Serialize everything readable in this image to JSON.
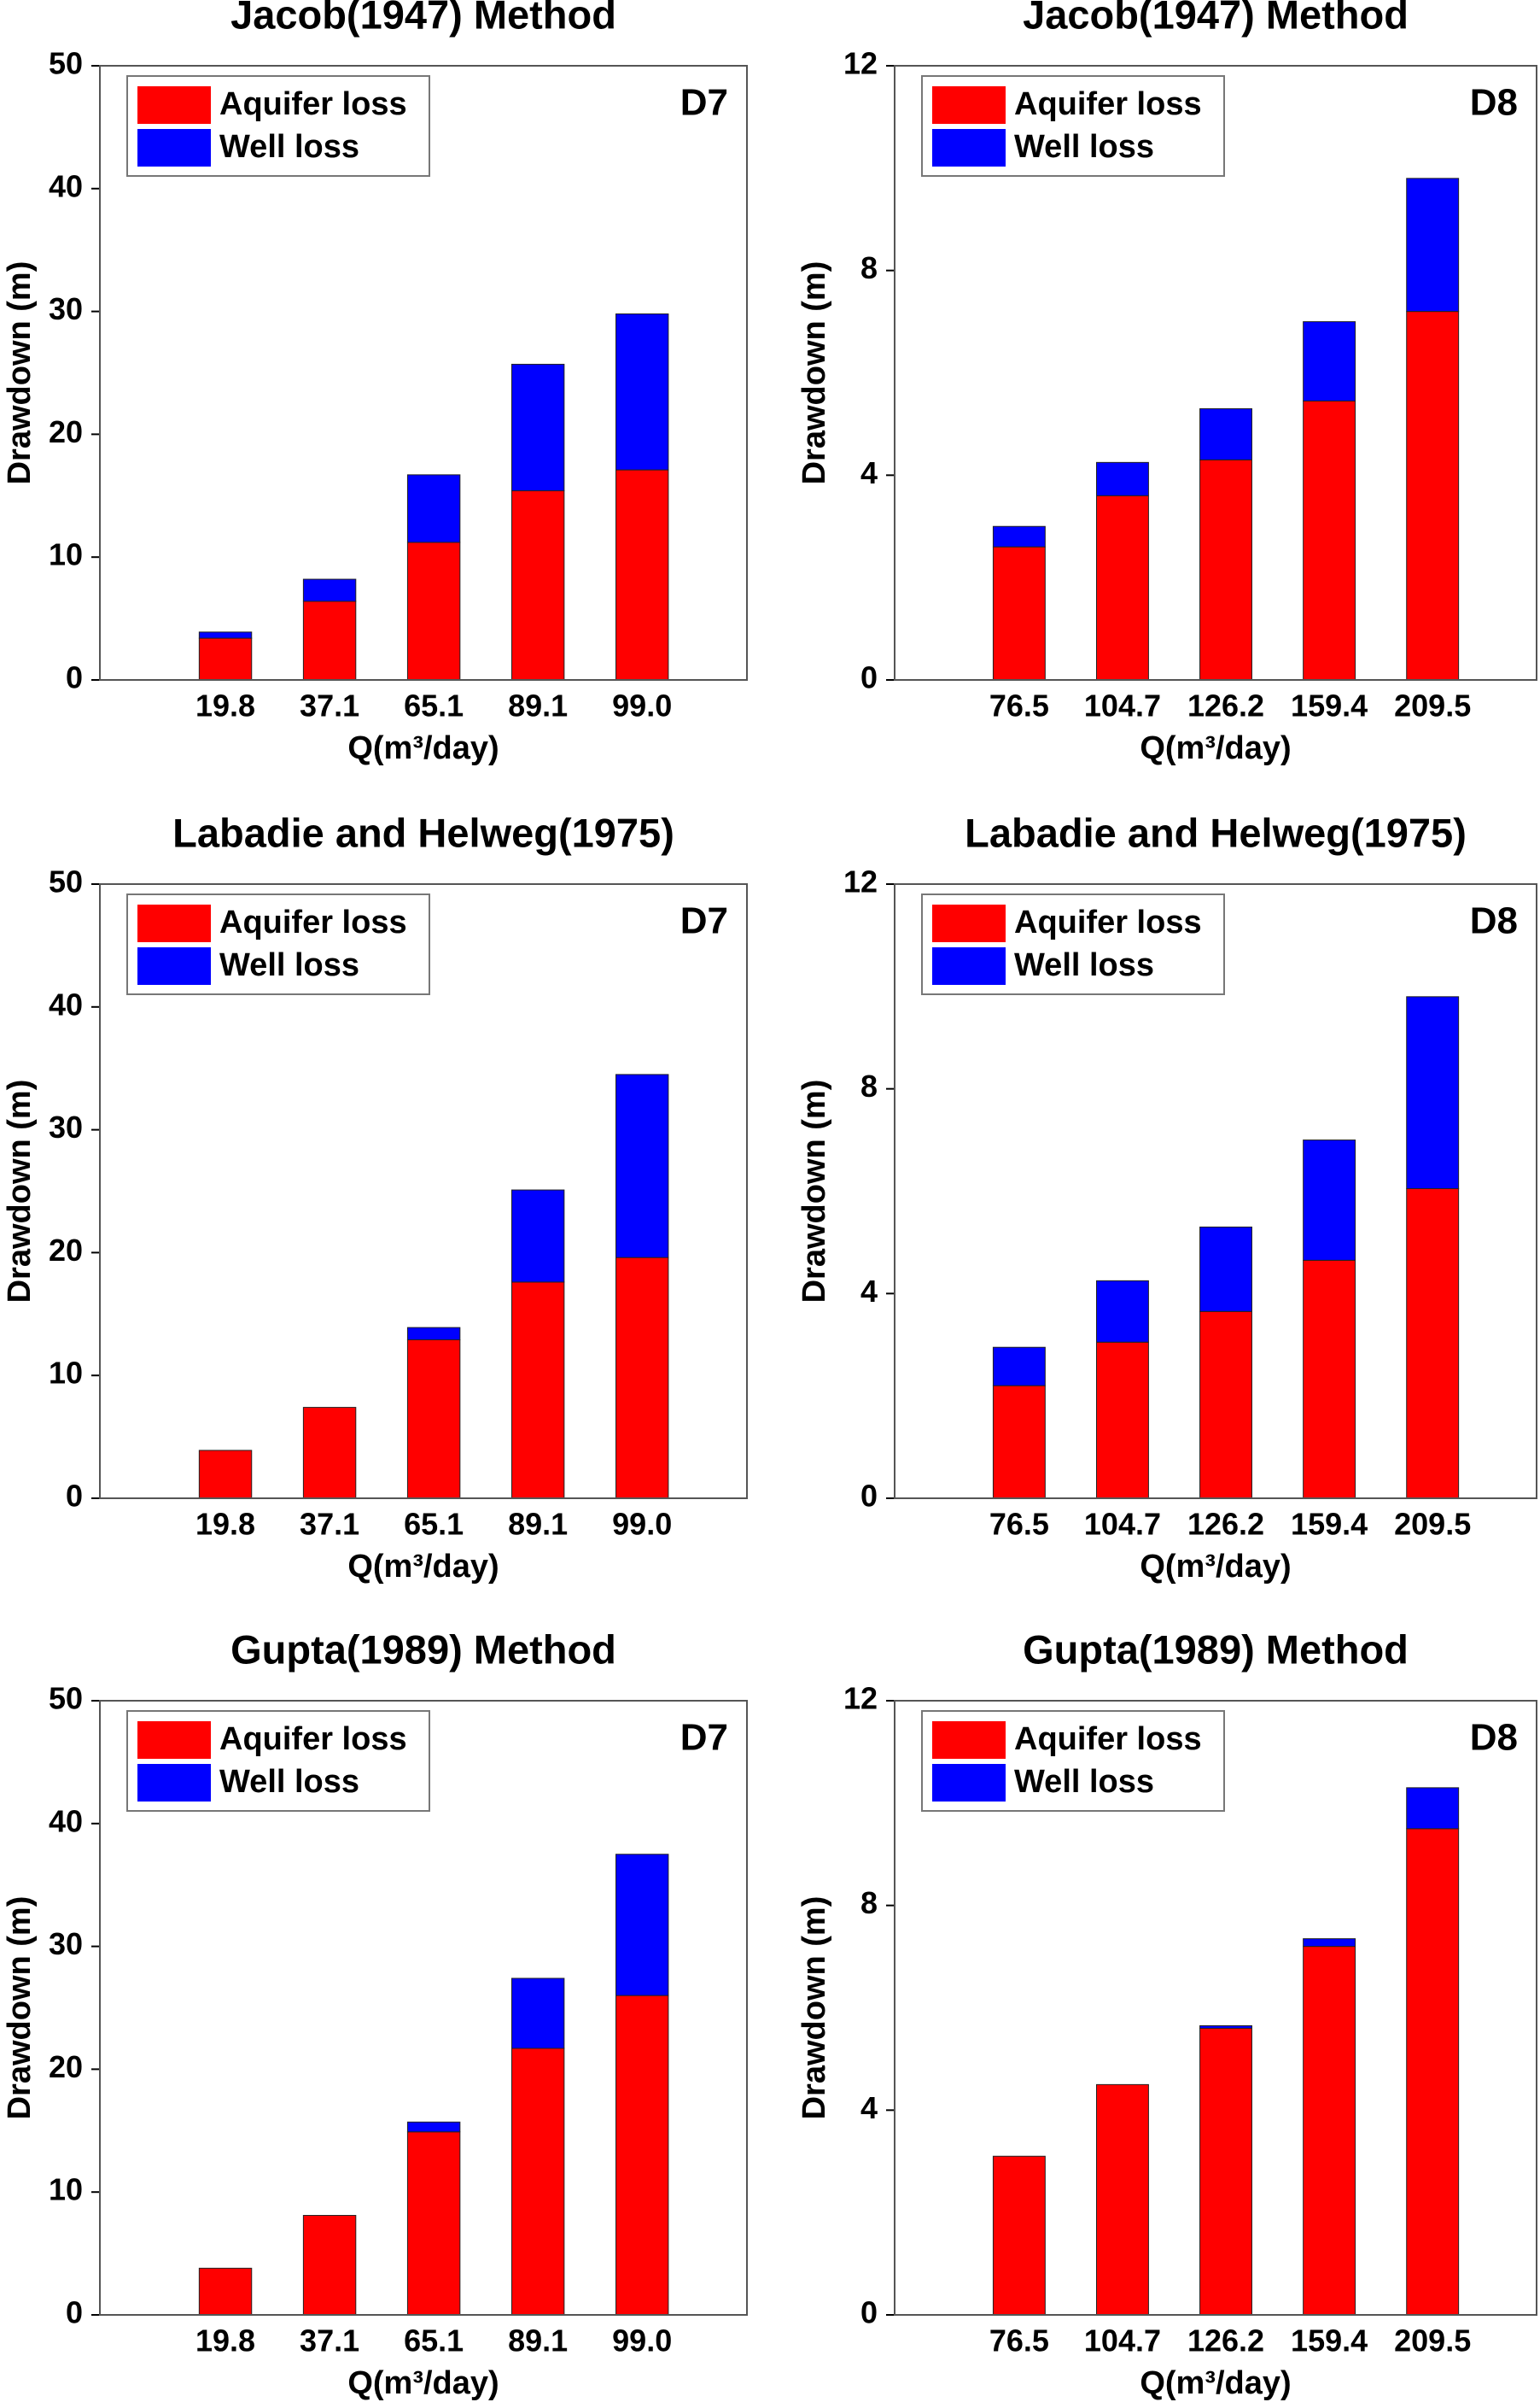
{
  "chart_data": [
    {
      "type": "bar",
      "stacked": true,
      "title": "Jacob(1947) Method",
      "annotation": "D7",
      "xlabel": "Q(m³/day)",
      "ylabel": "Drawdown (m)",
      "categories": [
        "19.8",
        "37.1",
        "65.1",
        "89.1",
        "99.0"
      ],
      "series": [
        {
          "name": "Aquifer loss",
          "color": "#ff0000",
          "values": [
            3.4,
            6.4,
            11.2,
            15.4,
            17.1
          ]
        },
        {
          "name": "Well loss",
          "color": "#0000ff",
          "values": [
            0.5,
            1.8,
            5.5,
            10.3,
            12.7
          ]
        }
      ],
      "ylim": [
        0,
        50
      ],
      "yticks": [
        0,
        10,
        20,
        30,
        40,
        50
      ],
      "legend": "upper left"
    },
    {
      "type": "bar",
      "stacked": true,
      "title": "Jacob(1947) Method",
      "annotation": "D8",
      "xlabel": "Q(m³/day)",
      "ylabel": "Drawdown (m)",
      "categories": [
        "76.5",
        "104.7",
        "126.2",
        "159.4",
        "209.5"
      ],
      "series": [
        {
          "name": "Aquifer loss",
          "color": "#ff0000",
          "values": [
            2.6,
            3.6,
            4.3,
            5.45,
            7.2
          ]
        },
        {
          "name": "Well loss",
          "color": "#0000ff",
          "values": [
            0.4,
            0.65,
            1.0,
            1.55,
            2.6
          ]
        }
      ],
      "ylim": [
        0,
        12
      ],
      "yticks": [
        0,
        4,
        8,
        12
      ],
      "legend": "upper left"
    },
    {
      "type": "bar",
      "stacked": true,
      "title": "Labadie and Helweg(1975)",
      "annotation": "D7",
      "xlabel": "Q(m³/day)",
      "ylabel": "Drawdown (m)",
      "categories": [
        "19.8",
        "37.1",
        "65.1",
        "89.1",
        "99.0"
      ],
      "series": [
        {
          "name": "Aquifer loss",
          "color": "#ff0000",
          "values": [
            3.9,
            7.4,
            12.9,
            17.6,
            19.6
          ]
        },
        {
          "name": "Well loss",
          "color": "#0000ff",
          "values": [
            0,
            0,
            1.0,
            7.5,
            14.9
          ]
        }
      ],
      "ylim": [
        0,
        50
      ],
      "yticks": [
        0,
        10,
        20,
        30,
        40,
        50
      ],
      "legend": "upper left"
    },
    {
      "type": "bar",
      "stacked": true,
      "title": "Labadie and Helweg(1975)",
      "annotation": "D8",
      "xlabel": "Q(m³/day)",
      "ylabel": "Drawdown (m)",
      "categories": [
        "76.5",
        "104.7",
        "126.2",
        "159.4",
        "209.5"
      ],
      "series": [
        {
          "name": "Aquifer loss",
          "color": "#ff0000",
          "values": [
            2.2,
            3.05,
            3.65,
            4.65,
            6.05
          ]
        },
        {
          "name": "Well loss",
          "color": "#0000ff",
          "values": [
            0.75,
            1.2,
            1.65,
            2.35,
            3.75
          ]
        }
      ],
      "ylim": [
        0,
        12
      ],
      "yticks": [
        0,
        4,
        8,
        12
      ],
      "legend": "upper left"
    },
    {
      "type": "bar",
      "stacked": true,
      "title": "Gupta(1989) Method",
      "annotation": "D7",
      "xlabel": "Q(m³/day)",
      "ylabel": "Drawdown (m)",
      "categories": [
        "19.8",
        "37.1",
        "65.1",
        "89.1",
        "99.0"
      ],
      "series": [
        {
          "name": "Aquifer loss",
          "color": "#ff0000",
          "values": [
            3.8,
            8.1,
            14.9,
            21.7,
            26.0
          ]
        },
        {
          "name": "Well loss",
          "color": "#0000ff",
          "values": [
            0,
            0,
            0.8,
            5.7,
            11.5
          ]
        }
      ],
      "ylim": [
        0,
        50
      ],
      "yticks": [
        0,
        10,
        20,
        30,
        40,
        50
      ],
      "legend": "upper left"
    },
    {
      "type": "bar",
      "stacked": true,
      "title": "Gupta(1989) Method",
      "annotation": "D8",
      "xlabel": "Q(m³/day)",
      "ylabel": "Drawdown (m)",
      "categories": [
        "76.5",
        "104.7",
        "126.2",
        "159.4",
        "209.5"
      ],
      "series": [
        {
          "name": "Aquifer loss",
          "color": "#ff0000",
          "values": [
            3.1,
            4.5,
            5.6,
            7.2,
            9.5
          ]
        },
        {
          "name": "Well loss",
          "color": "#0000ff",
          "values": [
            0,
            0,
            0.05,
            0.15,
            0.8
          ]
        }
      ],
      "ylim": [
        0,
        12
      ],
      "yticks": [
        0,
        4,
        8,
        12
      ],
      "legend": "upper left"
    }
  ]
}
